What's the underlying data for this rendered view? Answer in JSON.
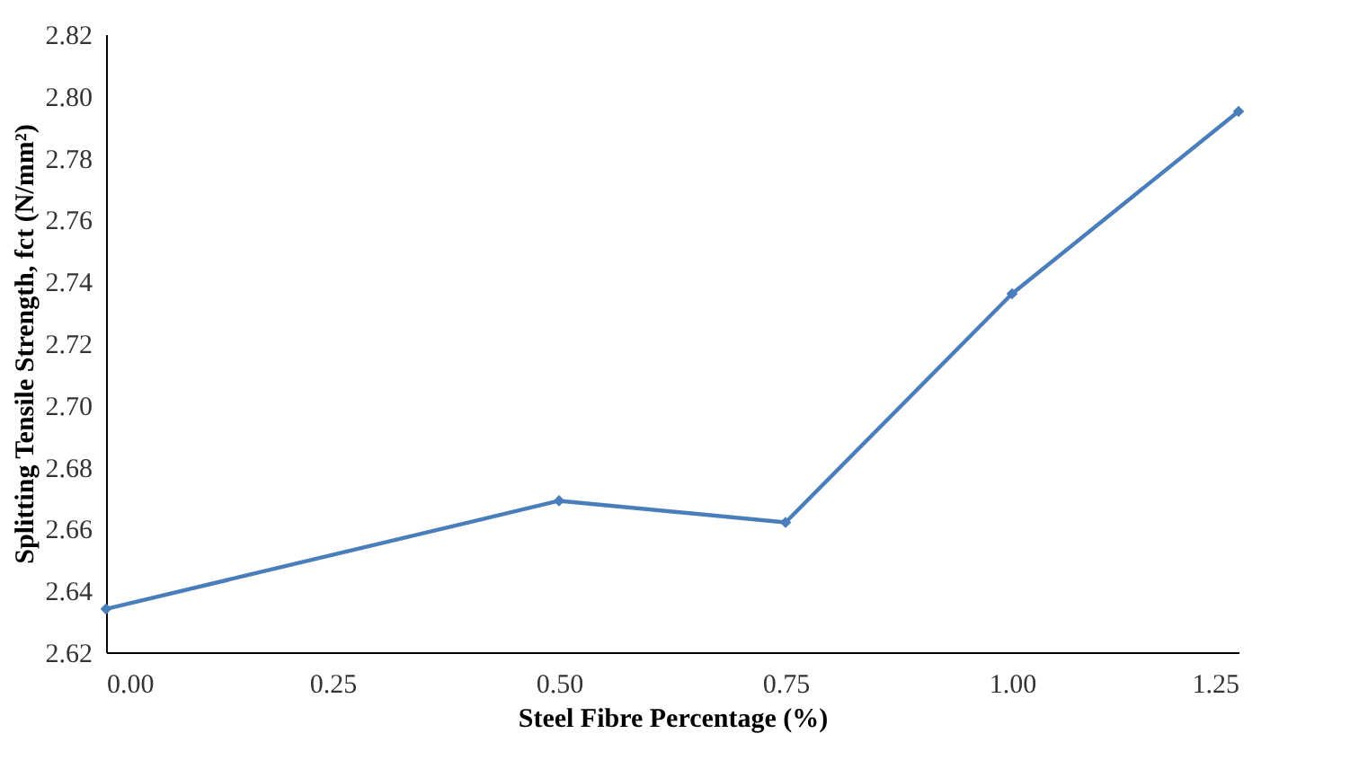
{
  "chart_data": {
    "type": "line",
    "xlabel": "Steel Fibre Percentage (%)",
    "ylabel": "Splitting Tensile Strength, fct (N/mm²)",
    "x": [
      0,
      0.5,
      0.75,
      1.0,
      1.25
    ],
    "series": [
      {
        "color": "#4a7ebb",
        "values": [
          2.634,
          2.669,
          2.662,
          2.736,
          2.795
        ]
      }
    ],
    "xlim": [
      0,
      1.25
    ],
    "xticks": [
      {
        "value": 0,
        "label": "0.00"
      },
      {
        "value": 0.25,
        "label": "0.25"
      },
      {
        "value": 0.5,
        "label": "0.50"
      },
      {
        "value": 0.75,
        "label": "0.75"
      },
      {
        "value": 1.0,
        "label": "1.00"
      },
      {
        "value": 1.25,
        "label": "1.25"
      }
    ],
    "ylim": [
      2.62,
      2.82
    ],
    "yticks": [
      {
        "value": 2.62,
        "label": "2.62"
      },
      {
        "value": 2.64,
        "label": "2.64"
      },
      {
        "value": 2.66,
        "label": "2.66"
      },
      {
        "value": 2.68,
        "label": "2.68"
      },
      {
        "value": 2.7,
        "label": "2.70"
      },
      {
        "value": 2.72,
        "label": "2.72"
      },
      {
        "value": 2.74,
        "label": "2.74"
      },
      {
        "value": 2.76,
        "label": "2.76"
      },
      {
        "value": 2.78,
        "label": "2.78"
      },
      {
        "value": 2.8,
        "label": "2.80"
      },
      {
        "value": 2.82,
        "label": "2.82"
      }
    ],
    "grid": false,
    "legend": false,
    "marker": "diamond",
    "line_style": "solid"
  }
}
